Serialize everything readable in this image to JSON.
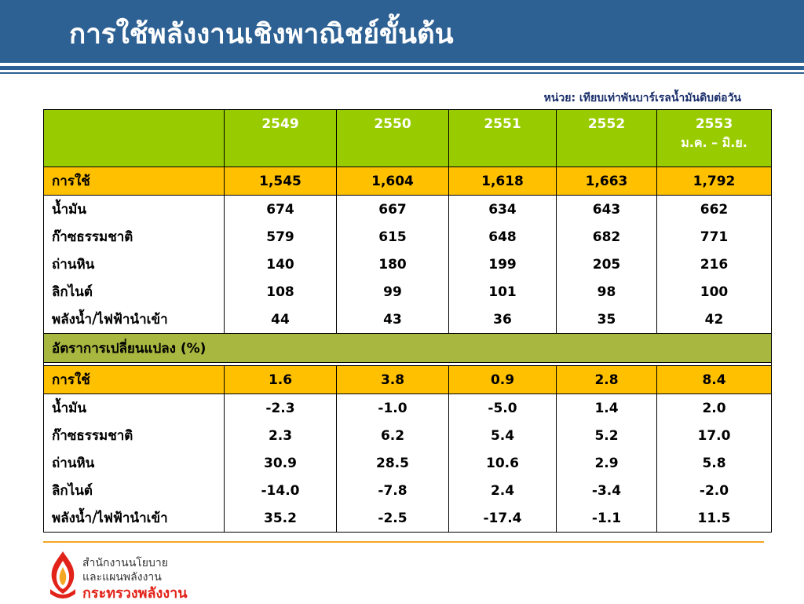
{
  "title": "การใช้พลังงานเชิงพาณิชย์ขั้นต้น",
  "unit_note": "หน่วย: เทียบเท่าพันบาร์เรลน้ำมันดิบต่อวัน",
  "table": {
    "headers": [
      "2549",
      "2550",
      "2551",
      "2552",
      "2553"
    ],
    "header_last_sub": "ม.ค. – มิ.ย.",
    "consumption": {
      "total": {
        "label": "การใช้",
        "values": [
          "1,545",
          "1,604",
          "1,618",
          "1,663",
          "1,792"
        ]
      },
      "rows": [
        {
          "label": "น้ำมัน",
          "values": [
            "674",
            "667",
            "634",
            "643",
            "662"
          ]
        },
        {
          "label": "ก๊าซธรรมชาติ",
          "values": [
            "579",
            "615",
            "648",
            "682",
            "771"
          ]
        },
        {
          "label": "ถ่านหิน",
          "values": [
            "140",
            "180",
            "199",
            "205",
            "216"
          ]
        },
        {
          "label": "ลิกไนต์",
          "values": [
            "108",
            "99",
            "101",
            "98",
            "100"
          ]
        },
        {
          "label": "พลังน้ำ/ไฟฟ้านำเข้า",
          "values": [
            "44",
            "43",
            "36",
            "35",
            "42"
          ]
        }
      ]
    },
    "change_section_label": "อัตราการเปลี่ยนแปลง (%)",
    "change": {
      "total": {
        "label": "การใช้",
        "values": [
          "1.6",
          "3.8",
          "0.9",
          "2.8",
          "8.4"
        ]
      },
      "rows": [
        {
          "label": "น้ำมัน",
          "values": [
            "-2.3",
            "-1.0",
            "-5.0",
            "1.4",
            "2.0"
          ]
        },
        {
          "label": "ก๊าซธรรมชาติ",
          "values": [
            "2.3",
            "6.2",
            "5.4",
            "5.2",
            "17.0"
          ]
        },
        {
          "label": "ถ่านหิน",
          "values": [
            "30.9",
            "28.5",
            "10.6",
            "2.9",
            "5.8"
          ]
        },
        {
          "label": "ลิกไนต์",
          "values": [
            "-14.0",
            "-7.8",
            "2.4",
            "-3.4",
            "-2.0"
          ]
        },
        {
          "label": "พลังน้ำ/ไฟฟ้านำเข้า",
          "values": [
            "35.2",
            "-2.5",
            "-17.4",
            "-1.1",
            "11.5"
          ]
        }
      ]
    }
  },
  "footer": {
    "org_line1": "สำนักงานนโยบาย",
    "org_line2": "และแผนพลังงาน",
    "org_line3": "กระทรวงพลังงาน",
    "logo_icon": "flame-logo-icon"
  },
  "colors": {
    "header_bg": "#2e6193",
    "table_header_bg": "#99cc00",
    "total_row_bg": "#ffc000",
    "section_row_bg": "#a7b73f",
    "footer_rule": "#f5a623",
    "org_red": "#e2231a"
  }
}
